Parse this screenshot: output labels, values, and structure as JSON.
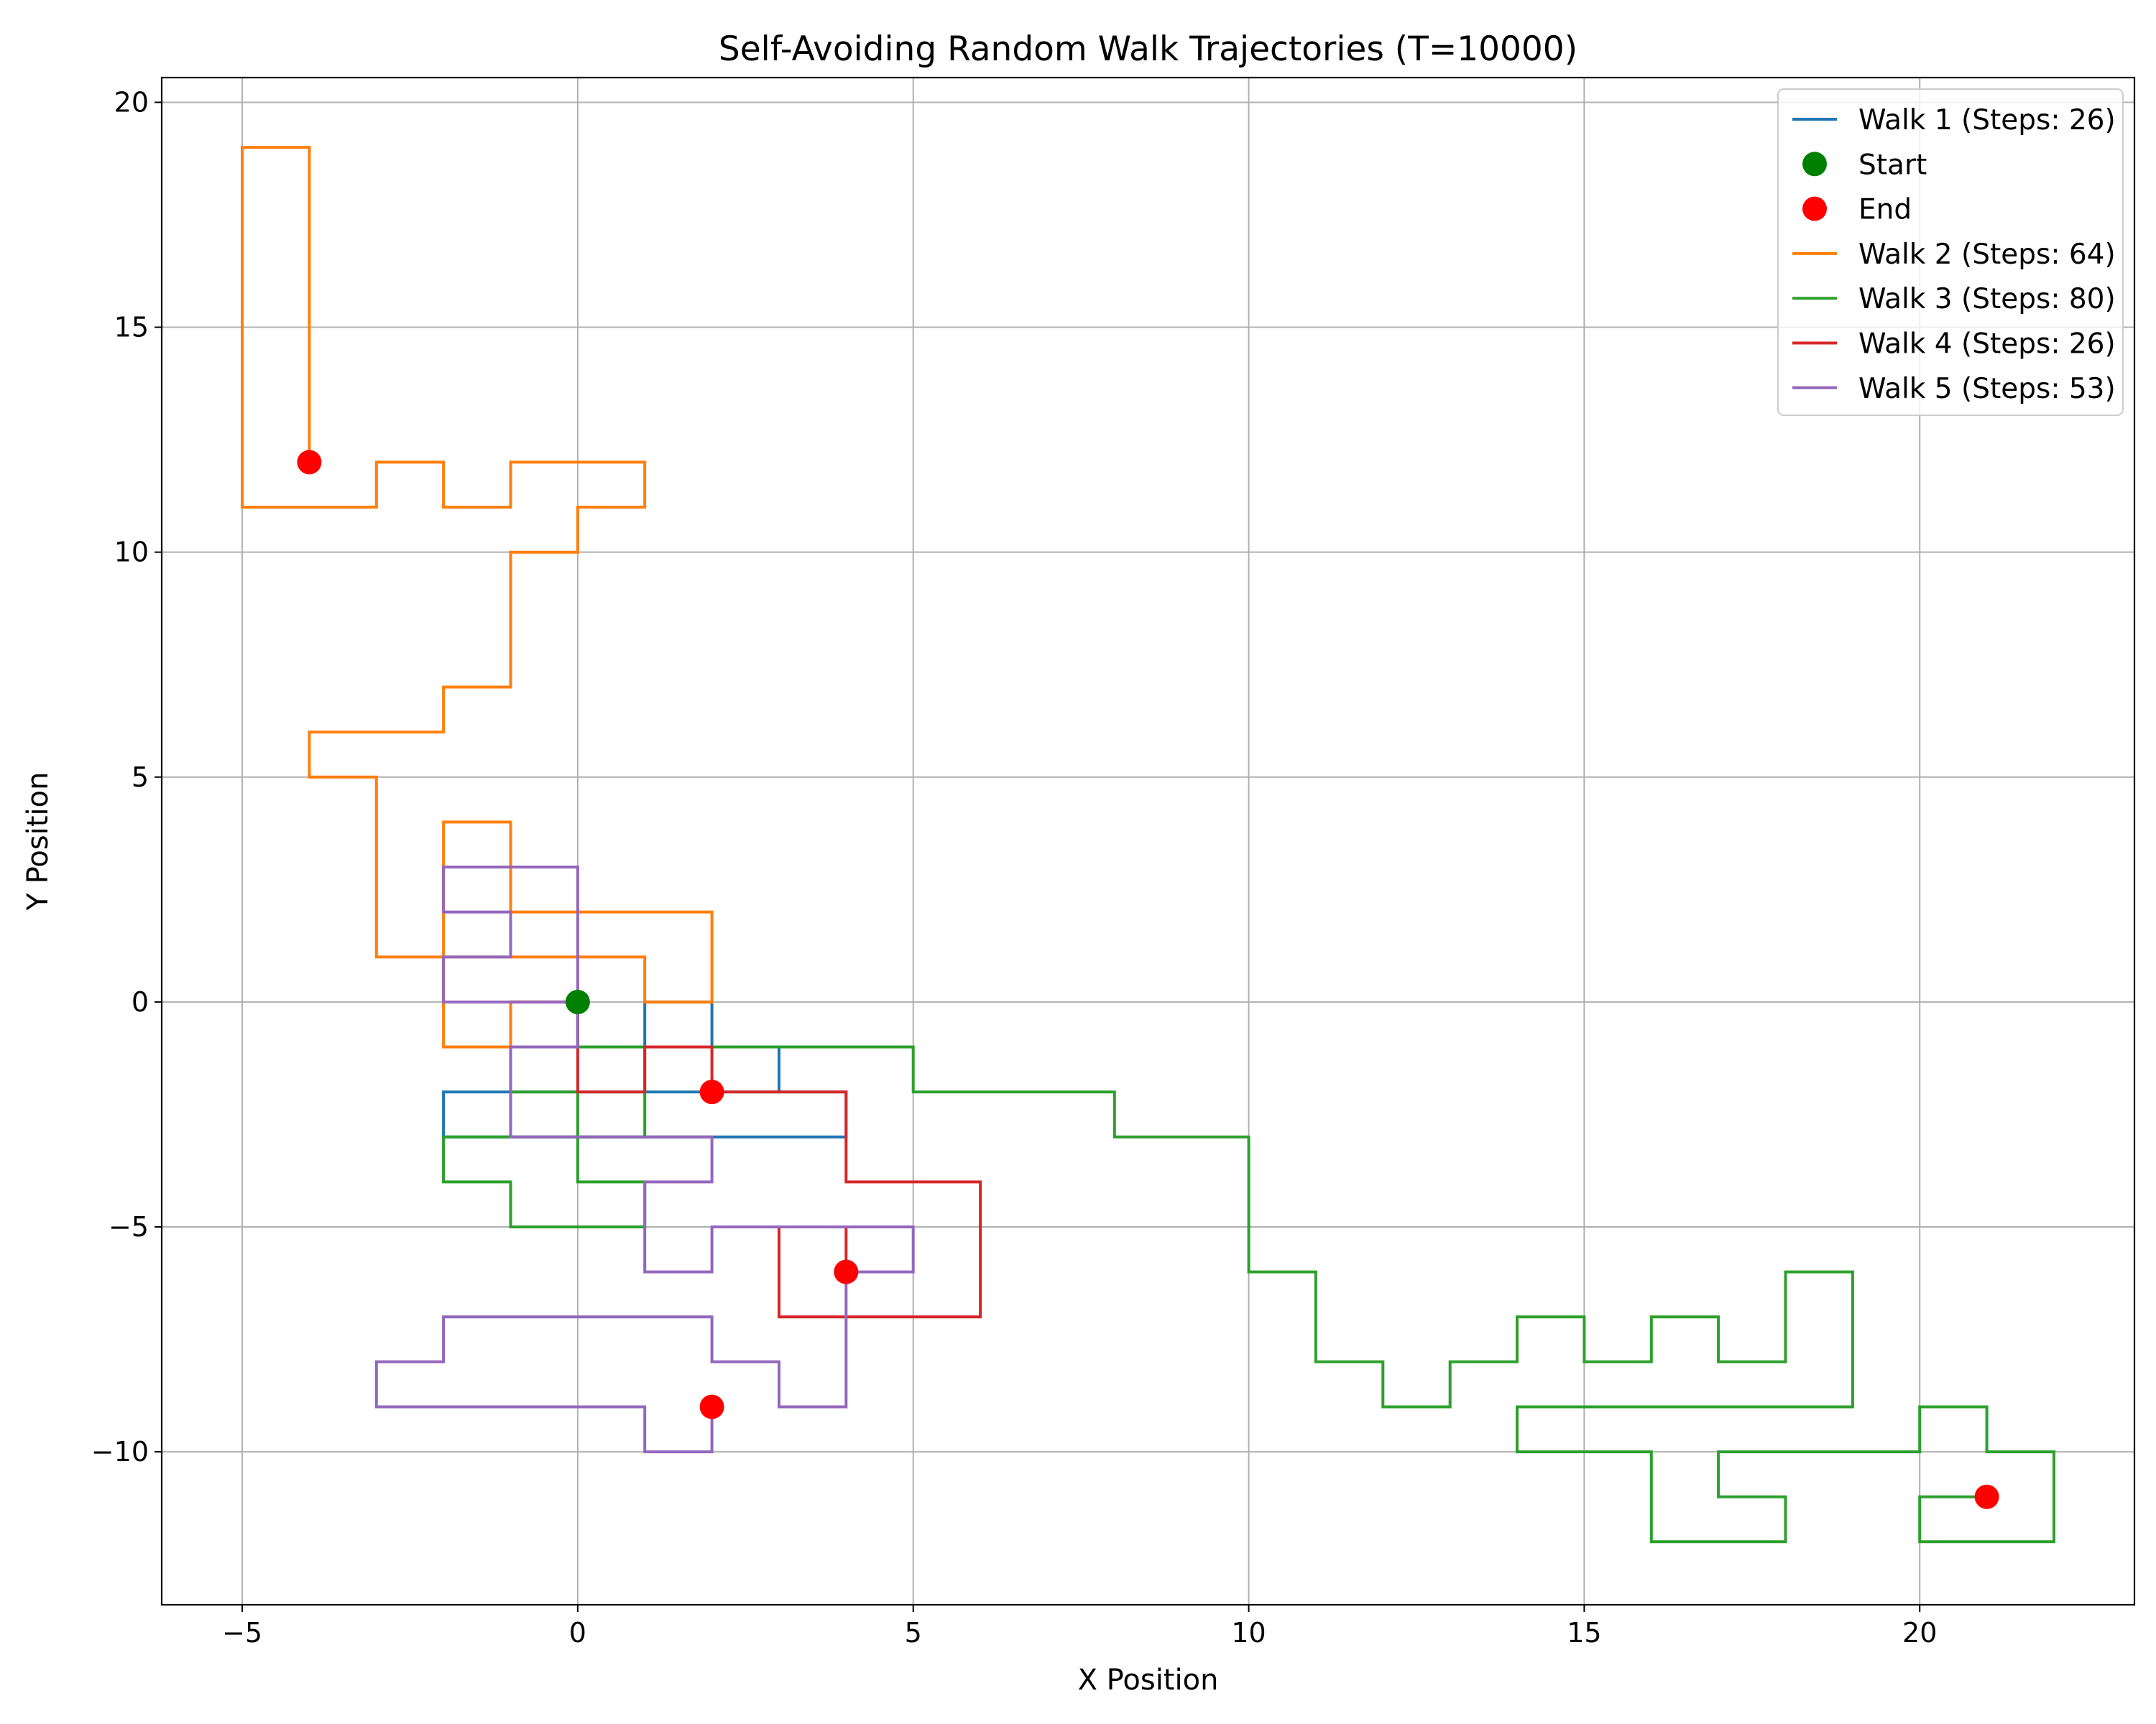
{
  "chart_data": {
    "type": "line",
    "title": "Self-Avoiding Random Walk Trajectories (T=10000)",
    "xlabel": "X Position",
    "ylabel": "Y Position",
    "xlim": [
      -6.2,
      23.2
    ],
    "ylim": [
      -13.4,
      20.55
    ],
    "xticks": [
      -5,
      0,
      5,
      10,
      15,
      20
    ],
    "xtick_labels": [
      "−5",
      "0",
      "5",
      "10",
      "15",
      "20"
    ],
    "yticks": [
      -10,
      -5,
      0,
      5,
      10,
      15,
      20
    ],
    "ytick_labels": [
      "−10",
      "−5",
      "0",
      "5",
      "10",
      "15",
      "20"
    ],
    "grid": true,
    "legend_position": "top-right",
    "legend": [
      {
        "label": "Walk 1 (Steps: 26)",
        "kind": "line",
        "color": "#1f77b4"
      },
      {
        "label": "Start",
        "kind": "marker",
        "color": "#008000"
      },
      {
        "label": "End",
        "kind": "marker",
        "color": "#ff0000"
      },
      {
        "label": "Walk 2 (Steps: 64)",
        "kind": "line",
        "color": "#ff7f0e"
      },
      {
        "label": "Walk 3 (Steps: 80)",
        "kind": "line",
        "color": "#2ca02c"
      },
      {
        "label": "Walk 4 (Steps: 26)",
        "kind": "line",
        "color": "#d62728"
      },
      {
        "label": "Walk 5 (Steps: 53)",
        "kind": "line",
        "color": "#9467bd"
      }
    ],
    "start_point": [
      0,
      0
    ],
    "series": [
      {
        "name": "Walk 1 (Steps: 26)",
        "color": "#1f77b4",
        "points": [
          [
            0,
            0
          ],
          [
            0,
            -1
          ],
          [
            1,
            -1
          ],
          [
            1,
            0
          ],
          [
            2,
            0
          ],
          [
            2,
            -1
          ],
          [
            3,
            -1
          ],
          [
            3,
            -2
          ],
          [
            2,
            -2
          ],
          [
            1,
            -2
          ],
          [
            0,
            -2
          ],
          [
            -1,
            -2
          ],
          [
            -2,
            -2
          ],
          [
            -2,
            -3
          ],
          [
            -1,
            -3
          ],
          [
            0,
            -3
          ],
          [
            1,
            -3
          ],
          [
            2,
            -3
          ],
          [
            3,
            -3
          ],
          [
            4,
            -3
          ],
          [
            4,
            -2
          ],
          [
            3,
            -2
          ],
          [
            2,
            -2
          ]
        ]
      },
      {
        "name": "Walk 2 (Steps: 64)",
        "color": "#ff7f0e",
        "points": [
          [
            0,
            0
          ],
          [
            -1,
            0
          ],
          [
            -1,
            -1
          ],
          [
            -2,
            -1
          ],
          [
            -2,
            0
          ],
          [
            -2,
            1
          ],
          [
            -2,
            2
          ],
          [
            -2,
            3
          ],
          [
            -2,
            4
          ],
          [
            -1,
            4
          ],
          [
            -1,
            3
          ],
          [
            -1,
            2
          ],
          [
            0,
            2
          ],
          [
            1,
            2
          ],
          [
            2,
            2
          ],
          [
            2,
            1
          ],
          [
            2,
            0
          ],
          [
            1,
            0
          ],
          [
            1,
            1
          ],
          [
            0,
            1
          ],
          [
            -1,
            1
          ],
          [
            -2,
            1
          ],
          [
            -3,
            1
          ],
          [
            -3,
            2
          ],
          [
            -3,
            3
          ],
          [
            -3,
            4
          ],
          [
            -3,
            5
          ],
          [
            -4,
            5
          ],
          [
            -4,
            6
          ],
          [
            -3,
            6
          ],
          [
            -2,
            6
          ],
          [
            -2,
            7
          ],
          [
            -1,
            7
          ],
          [
            -1,
            8
          ],
          [
            -1,
            9
          ],
          [
            -1,
            10
          ],
          [
            0,
            10
          ],
          [
            0,
            11
          ],
          [
            1,
            11
          ],
          [
            1,
            12
          ],
          [
            0,
            12
          ],
          [
            -1,
            12
          ],
          [
            -1,
            11
          ],
          [
            -2,
            11
          ],
          [
            -2,
            12
          ],
          [
            -3,
            12
          ],
          [
            -3,
            11
          ],
          [
            -4,
            11
          ],
          [
            -5,
            11
          ],
          [
            -5,
            12
          ],
          [
            -5,
            13
          ],
          [
            -5,
            14
          ],
          [
            -5,
            15
          ],
          [
            -5,
            16
          ],
          [
            -5,
            17
          ],
          [
            -5,
            18
          ],
          [
            -5,
            19
          ],
          [
            -4,
            19
          ],
          [
            -4,
            18
          ],
          [
            -4,
            17
          ],
          [
            -4,
            16
          ],
          [
            -4,
            15
          ],
          [
            -4,
            14
          ],
          [
            -4,
            13
          ],
          [
            -4,
            12
          ]
        ]
      },
      {
        "name": "Walk 3 (Steps: 80)",
        "color": "#2ca02c",
        "points": [
          [
            0,
            0
          ],
          [
            0,
            -1
          ],
          [
            1,
            -1
          ],
          [
            1,
            -2
          ],
          [
            1,
            -3
          ],
          [
            0,
            -3
          ],
          [
            -1,
            -3
          ],
          [
            -2,
            -3
          ],
          [
            -2,
            -4
          ],
          [
            -1,
            -4
          ],
          [
            -1,
            -5
          ],
          [
            0,
            -5
          ],
          [
            1,
            -5
          ],
          [
            1,
            -4
          ],
          [
            0,
            -4
          ],
          [
            0,
            -3
          ],
          [
            0,
            -2
          ],
          [
            -1,
            -2
          ],
          [
            -1,
            -1
          ],
          [
            0,
            -1
          ],
          [
            1,
            -1
          ],
          [
            2,
            -1
          ],
          [
            3,
            -1
          ],
          [
            4,
            -1
          ],
          [
            5,
            -1
          ],
          [
            5,
            -2
          ],
          [
            6,
            -2
          ],
          [
            7,
            -2
          ],
          [
            8,
            -2
          ],
          [
            8,
            -3
          ],
          [
            9,
            -3
          ],
          [
            10,
            -3
          ],
          [
            10,
            -4
          ],
          [
            10,
            -5
          ],
          [
            10,
            -6
          ],
          [
            11,
            -6
          ],
          [
            11,
            -7
          ],
          [
            11,
            -8
          ],
          [
            12,
            -8
          ],
          [
            12,
            -9
          ],
          [
            13,
            -9
          ],
          [
            13,
            -8
          ],
          [
            14,
            -8
          ],
          [
            14,
            -7
          ],
          [
            15,
            -7
          ],
          [
            15,
            -8
          ],
          [
            16,
            -8
          ],
          [
            16,
            -7
          ],
          [
            17,
            -7
          ],
          [
            17,
            -8
          ],
          [
            18,
            -8
          ],
          [
            18,
            -7
          ],
          [
            18,
            -6
          ],
          [
            19,
            -6
          ],
          [
            19,
            -7
          ],
          [
            19,
            -8
          ],
          [
            19,
            -9
          ],
          [
            18,
            -9
          ],
          [
            17,
            -9
          ],
          [
            16,
            -9
          ],
          [
            15,
            -9
          ],
          [
            14,
            -9
          ],
          [
            14,
            -10
          ],
          [
            15,
            -10
          ],
          [
            16,
            -10
          ],
          [
            16,
            -11
          ],
          [
            16,
            -12
          ],
          [
            17,
            -12
          ],
          [
            18,
            -12
          ],
          [
            18,
            -11
          ],
          [
            17,
            -11
          ],
          [
            17,
            -10
          ],
          [
            18,
            -10
          ],
          [
            19,
            -10
          ],
          [
            20,
            -10
          ],
          [
            20,
            -9
          ],
          [
            21,
            -9
          ],
          [
            21,
            -10
          ],
          [
            22,
            -10
          ],
          [
            22,
            -11
          ],
          [
            22,
            -12
          ],
          [
            21,
            -12
          ],
          [
            20,
            -12
          ],
          [
            20,
            -11
          ],
          [
            21,
            -11
          ]
        ]
      },
      {
        "name": "Walk 4 (Steps: 26)",
        "color": "#d62728",
        "points": [
          [
            0,
            0
          ],
          [
            -1,
            0
          ],
          [
            0,
            0
          ],
          [
            0,
            -1
          ],
          [
            0,
            -2
          ],
          [
            1,
            -2
          ],
          [
            1,
            -1
          ],
          [
            2,
            -1
          ],
          [
            2,
            -2
          ],
          [
            3,
            -2
          ],
          [
            4,
            -2
          ],
          [
            4,
            -3
          ],
          [
            4,
            -4
          ],
          [
            5,
            -4
          ],
          [
            6,
            -4
          ],
          [
            6,
            -5
          ],
          [
            6,
            -6
          ],
          [
            6,
            -7
          ],
          [
            5,
            -7
          ],
          [
            4,
            -7
          ],
          [
            3,
            -7
          ],
          [
            3,
            -6
          ],
          [
            3,
            -5
          ],
          [
            4,
            -5
          ],
          [
            4,
            -6
          ]
        ]
      },
      {
        "name": "Walk 5 (Steps: 53)",
        "color": "#9467bd",
        "points": [
          [
            0,
            0
          ],
          [
            -1,
            0
          ],
          [
            -2,
            0
          ],
          [
            -2,
            1
          ],
          [
            -1,
            1
          ],
          [
            -1,
            2
          ],
          [
            -2,
            2
          ],
          [
            -2,
            3
          ],
          [
            -1,
            3
          ],
          [
            0,
            3
          ],
          [
            0,
            2
          ],
          [
            0,
            1
          ],
          [
            0,
            0
          ],
          [
            0,
            -1
          ],
          [
            -1,
            -1
          ],
          [
            -1,
            -2
          ],
          [
            -1,
            -3
          ],
          [
            0,
            -3
          ],
          [
            1,
            -3
          ],
          [
            2,
            -3
          ],
          [
            2,
            -4
          ],
          [
            1,
            -4
          ],
          [
            1,
            -5
          ],
          [
            1,
            -6
          ],
          [
            2,
            -6
          ],
          [
            2,
            -5
          ],
          [
            3,
            -5
          ],
          [
            4,
            -5
          ],
          [
            5,
            -5
          ],
          [
            5,
            -6
          ],
          [
            4,
            -6
          ],
          [
            4,
            -7
          ],
          [
            4,
            -8
          ],
          [
            4,
            -9
          ],
          [
            3,
            -9
          ],
          [
            3,
            -8
          ],
          [
            2,
            -8
          ],
          [
            2,
            -7
          ],
          [
            1,
            -7
          ],
          [
            0,
            -7
          ],
          [
            -1,
            -7
          ],
          [
            -2,
            -7
          ],
          [
            -2,
            -8
          ],
          [
            -3,
            -8
          ],
          [
            -3,
            -9
          ],
          [
            -2,
            -9
          ],
          [
            -1,
            -9
          ],
          [
            0,
            -9
          ],
          [
            1,
            -9
          ],
          [
            1,
            -10
          ],
          [
            2,
            -10
          ],
          [
            2,
            -9
          ]
        ]
      }
    ],
    "end_points": [
      [
        2,
        -2
      ],
      [
        -4,
        12
      ],
      [
        21,
        -11
      ],
      [
        4,
        -6
      ],
      [
        2,
        -9
      ]
    ]
  }
}
